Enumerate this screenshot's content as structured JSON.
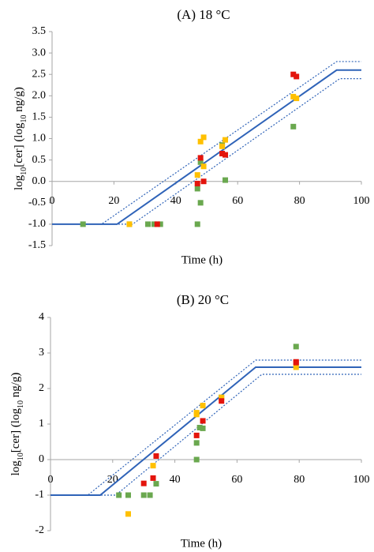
{
  "chart_data": [
    {
      "type": "scatter",
      "title": "(A) 18 °C",
      "xlabel": "Time (h)",
      "ylabel": "log10[cer] (log10 ng/g)",
      "xlim": [
        0,
        100
      ],
      "ylim": [
        -1.5,
        3.5
      ],
      "xticks": [
        0,
        20,
        40,
        60,
        80,
        100
      ],
      "xtick_labels": [
        "0",
        "20",
        "40",
        "60",
        "80",
        "100"
      ],
      "yticks": [
        -1.5,
        -1.0,
        -0.5,
        0.0,
        0.5,
        1.0,
        1.5,
        2.0,
        2.5,
        3.0,
        3.5
      ],
      "ytick_labels": [
        "-1.5",
        "-1.0",
        "-0.5",
        "0.0",
        "0.5",
        "1.0",
        "1.5",
        "2.0",
        "2.5",
        "3.0",
        "3.5"
      ],
      "grid": false,
      "model_line": {
        "color": "#2f63b8",
        "x": [
          0,
          21,
          92,
          100
        ],
        "y": [
          -1.0,
          -1.0,
          2.6,
          2.6
        ]
      },
      "bounds": [
        {
          "color": "#2f63b8",
          "style": "dotted",
          "x": [
            0,
            16,
            92,
            100
          ],
          "y": [
            -1.0,
            -1.0,
            2.8,
            2.8
          ]
        },
        {
          "color": "#2f63b8",
          "style": "dotted",
          "x": [
            0,
            26,
            93,
            100
          ],
          "y": [
            -1.0,
            -1.0,
            2.4,
            2.4
          ]
        }
      ],
      "series": [
        {
          "color": "#6aa84f",
          "points": [
            [
              10,
              -1.0
            ],
            [
              25,
              -1.0
            ],
            [
              31,
              -1.0
            ],
            [
              33,
              -1.0
            ],
            [
              35,
              -1.0
            ],
            [
              47,
              -0.17
            ],
            [
              47,
              -1.0
            ],
            [
              48,
              0.45
            ],
            [
              48,
              -0.5
            ],
            [
              55,
              0.85
            ],
            [
              56,
              0.03
            ],
            [
              78,
              1.28
            ]
          ]
        },
        {
          "color": "#ffc000",
          "points": [
            [
              25,
              -1.0
            ],
            [
              47,
              0.15
            ],
            [
              48,
              0.93
            ],
            [
              49,
              1.03
            ],
            [
              49,
              0.35
            ],
            [
              55,
              0.82
            ],
            [
              56,
              0.97
            ],
            [
              78,
              1.98
            ],
            [
              79,
              1.94
            ]
          ]
        },
        {
          "color": "#e3140c",
          "points": [
            [
              34,
              -1.0
            ],
            [
              47,
              -0.05
            ],
            [
              48,
              0.55
            ],
            [
              49,
              0.0
            ],
            [
              55,
              0.65
            ],
            [
              56,
              0.62
            ],
            [
              78,
              2.5
            ],
            [
              79,
              2.45
            ]
          ]
        }
      ]
    },
    {
      "type": "scatter",
      "title": "(B) 20 °C",
      "xlabel": "Time (h)",
      "ylabel": "log10[cer] (log10 ng/g)",
      "xlim": [
        0,
        100
      ],
      "ylim": [
        -2,
        4
      ],
      "xticks": [
        0,
        20,
        40,
        60,
        80,
        100
      ],
      "xtick_labels": [
        "0",
        "20",
        "40",
        "60",
        "80",
        "100"
      ],
      "yticks": [
        -2,
        -1,
        0,
        1,
        2,
        3,
        4
      ],
      "ytick_labels": [
        "-2",
        "-1",
        "0",
        "1",
        "2",
        "3",
        "4"
      ],
      "grid": false,
      "model_line": {
        "color": "#2f63b8",
        "x": [
          0,
          16,
          66,
          100
        ],
        "y": [
          -1.0,
          -1.0,
          2.6,
          2.6
        ]
      },
      "bounds": [
        {
          "color": "#2f63b8",
          "style": "dotted",
          "x": [
            0,
            12,
            66,
            100
          ],
          "y": [
            -1.0,
            -1.0,
            2.8,
            2.8
          ]
        },
        {
          "color": "#2f63b8",
          "style": "dotted",
          "x": [
            0,
            21,
            68,
            100
          ],
          "y": [
            -1.0,
            -1.0,
            2.4,
            2.4
          ]
        }
      ],
      "series": [
        {
          "color": "#6aa84f",
          "points": [
            [
              22,
              -1.0
            ],
            [
              25,
              -1.0
            ],
            [
              30,
              -1.0
            ],
            [
              32,
              -1.0
            ],
            [
              34,
              -0.68
            ],
            [
              47,
              0.0
            ],
            [
              47,
              0.47
            ],
            [
              48,
              0.9
            ],
            [
              49,
              0.88
            ],
            [
              55,
              1.75
            ],
            [
              79,
              3.18
            ]
          ]
        },
        {
          "color": "#ffc000",
          "points": [
            [
              25,
              -1.53
            ],
            [
              33,
              -0.17
            ],
            [
              47,
              1.32
            ],
            [
              47,
              1.27
            ],
            [
              49,
              1.52
            ],
            [
              55,
              1.75
            ],
            [
              79,
              2.6
            ]
          ]
        },
        {
          "color": "#e3140c",
          "points": [
            [
              30,
              -0.67
            ],
            [
              33,
              -0.52
            ],
            [
              34,
              0.1
            ],
            [
              47,
              0.68
            ],
            [
              49,
              1.09
            ],
            [
              55,
              1.65
            ],
            [
              79,
              2.73
            ],
            [
              79,
              2.75
            ]
          ]
        }
      ]
    }
  ]
}
